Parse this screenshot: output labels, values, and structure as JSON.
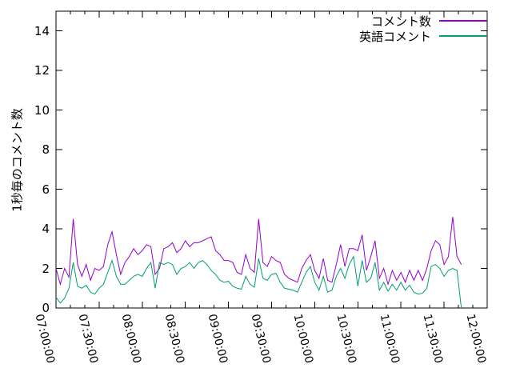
{
  "figure": {
    "background": "#ffffff",
    "frame_color": "#000000"
  },
  "chart_data": {
    "type": "line",
    "title": "",
    "xlabel": "",
    "ylabel": "1秒毎のコメント数",
    "grid": false,
    "legend_position": "top-right-inside",
    "x_axis": {
      "start": "07:00:00",
      "end": "12:00:00",
      "tick_labels": [
        "07:00:00",
        "07:30:00",
        "08:00:00",
        "08:30:00",
        "09:00:00",
        "09:30:00",
        "10:00:00",
        "10:30:00",
        "11:00:00",
        "11:30:00",
        "12:00:00"
      ],
      "major_tick_minutes": 30,
      "minor_tick_minutes": 10,
      "tick_label_rotation_deg": 76
    },
    "y_axis": {
      "range": [
        0,
        15
      ],
      "tick_labels": [
        "0",
        "2",
        "4",
        "6",
        "8",
        "10",
        "12",
        "14"
      ],
      "tick_step": 2
    },
    "sampling": {
      "x_start": "07:00:00",
      "x_step_seconds": 180,
      "x_end": "11:42:00"
    },
    "series": [
      {
        "name": "コメント数",
        "color": "#9400d3",
        "values": [
          2.0,
          1.2,
          2.0,
          1.55,
          4.5,
          2.2,
          1.6,
          2.2,
          1.4,
          2.0,
          1.9,
          2.1,
          3.2,
          3.85,
          2.7,
          1.7,
          2.3,
          2.6,
          3.0,
          2.7,
          2.9,
          3.2,
          3.1,
          1.7,
          2.0,
          3.0,
          3.1,
          3.3,
          2.8,
          3.0,
          3.4,
          3.1,
          3.3,
          3.3,
          3.4,
          3.5,
          3.6,
          2.9,
          2.7,
          2.4,
          2.4,
          2.3,
          1.8,
          1.7,
          2.7,
          2.0,
          1.8,
          4.5,
          2.3,
          2.1,
          2.6,
          2.4,
          2.3,
          1.7,
          1.5,
          1.4,
          1.3,
          2.0,
          2.4,
          2.7,
          1.9,
          1.5,
          2.5,
          1.4,
          1.3,
          2.2,
          3.2,
          2.1,
          3.0,
          3.0,
          2.9,
          3.7,
          1.9,
          2.6,
          3.4,
          1.5,
          2.0,
          1.2,
          1.9,
          1.4,
          1.8,
          1.3,
          1.9,
          1.4,
          1.9,
          1.4,
          2.0,
          2.9,
          3.4,
          3.2,
          2.2,
          2.6,
          4.6,
          2.6,
          2.2
        ]
      },
      {
        "name": "英語コメント",
        "color": "#009e73",
        "values": [
          0.55,
          0.25,
          0.5,
          1.0,
          2.3,
          1.1,
          1.0,
          1.15,
          0.8,
          0.7,
          1.0,
          1.2,
          1.8,
          2.4,
          1.6,
          1.2,
          1.2,
          1.4,
          1.6,
          1.7,
          1.6,
          2.0,
          2.3,
          1.0,
          2.3,
          2.2,
          2.3,
          2.2,
          1.7,
          2.0,
          2.1,
          2.3,
          2.0,
          2.3,
          2.4,
          2.2,
          1.9,
          1.7,
          1.4,
          1.3,
          1.35,
          1.1,
          1.0,
          0.95,
          1.6,
          1.2,
          1.05,
          2.5,
          1.5,
          1.4,
          1.7,
          1.75,
          1.3,
          1.0,
          0.95,
          0.9,
          0.8,
          1.3,
          1.8,
          2.1,
          1.3,
          0.9,
          1.6,
          0.8,
          0.9,
          1.6,
          2.0,
          1.5,
          2.2,
          2.6,
          1.1,
          2.4,
          1.3,
          1.5,
          2.3,
          0.9,
          1.3,
          0.85,
          1.2,
          0.9,
          1.3,
          0.9,
          1.15,
          0.8,
          0.7,
          0.75,
          1.0,
          2.1,
          2.2,
          2.0,
          1.6,
          1.9,
          2.0,
          1.9,
          0.0
        ]
      }
    ]
  }
}
